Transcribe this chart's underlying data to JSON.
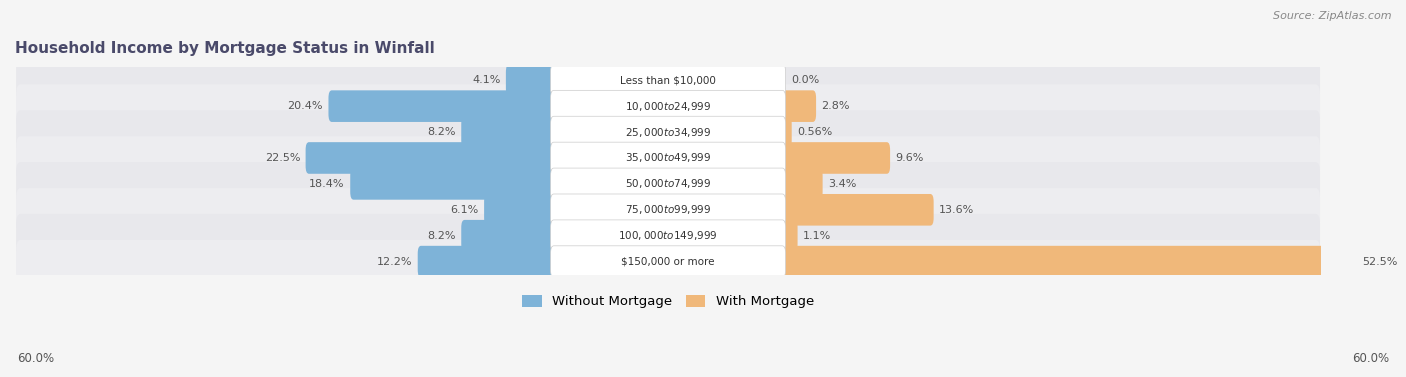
{
  "title": "Household Income by Mortgage Status in Winfall",
  "source": "Source: ZipAtlas.com",
  "categories": [
    "Less than $10,000",
    "$10,000 to $24,999",
    "$25,000 to $34,999",
    "$35,000 to $49,999",
    "$50,000 to $74,999",
    "$75,000 to $99,999",
    "$100,000 to $149,999",
    "$150,000 or more"
  ],
  "without_mortgage": [
    4.1,
    20.4,
    8.2,
    22.5,
    18.4,
    6.1,
    8.2,
    12.2
  ],
  "with_mortgage": [
    0.0,
    2.8,
    0.56,
    9.6,
    3.4,
    13.6,
    1.1,
    52.5
  ],
  "without_mortgage_labels": [
    "4.1%",
    "20.4%",
    "8.2%",
    "22.5%",
    "18.4%",
    "6.1%",
    "8.2%",
    "12.2%"
  ],
  "with_mortgage_labels": [
    "0.0%",
    "2.8%",
    "0.56%",
    "9.6%",
    "3.4%",
    "13.6%",
    "1.1%",
    "52.5%"
  ],
  "color_without": "#7EB3D8",
  "color_with": "#F0B87A",
  "axis_max": 60.0,
  "axis_label_left": "60.0%",
  "axis_label_right": "60.0%",
  "legend_without": "Without Mortgage",
  "legend_with": "With Mortgage",
  "bg_color": "#f5f5f5",
  "row_bg_even": "#e8e8ec",
  "row_bg_odd": "#ededf0",
  "title_color": "#4a4a6a",
  "source_color": "#888888",
  "label_color": "#555555",
  "cat_label_color": "#333333"
}
